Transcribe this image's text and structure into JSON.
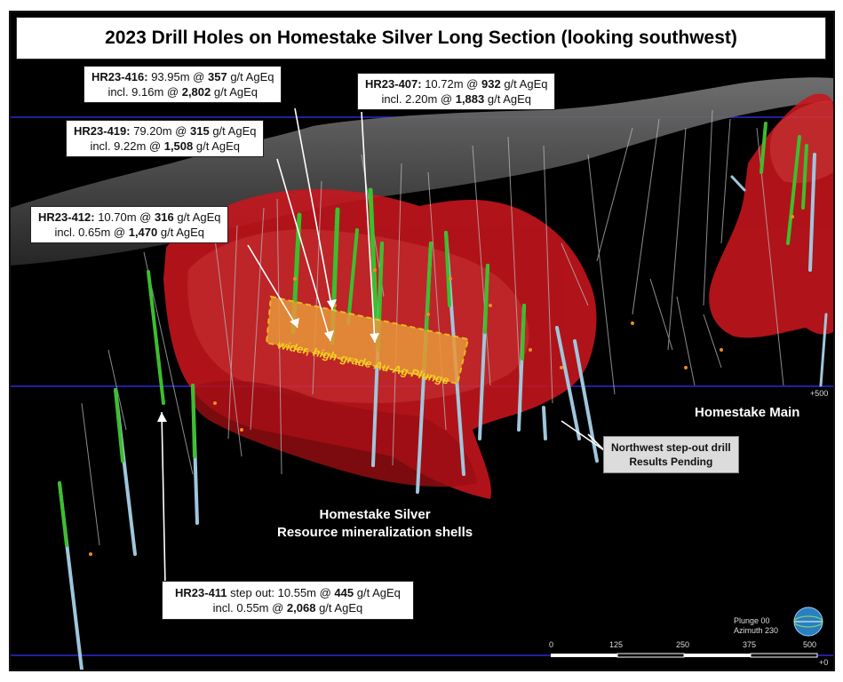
{
  "title": "2023 Drill Holes on Homestake Silver Long Section (looking southwest)",
  "callouts": [
    {
      "id": "hr23-416",
      "hole": "HR23-416:",
      "line1_pre": " 93.95m @ ",
      "line1_val": "357",
      "line1_post": " g/t AgEq",
      "line2_pre": "incl. 9.16m @ ",
      "line2_val": "2,802",
      "line2_post": " g/t AgEq"
    },
    {
      "id": "hr23-407",
      "hole": "HR23-407:",
      "line1_pre": " 10.72m @ ",
      "line1_val": "932",
      "line1_post": " g/t AgEq",
      "line2_pre": "incl. 2.20m @ ",
      "line2_val": "1,883",
      "line2_post": " g/t AgEq"
    },
    {
      "id": "hr23-419",
      "hole": "HR23-419:",
      "line1_pre": " 79.20m @ ",
      "line1_val": "315",
      "line1_post": " g/t AgEq",
      "line2_pre": "incl. 9.22m @ ",
      "line2_val": "1,508",
      "line2_post": " g/t AgEq"
    },
    {
      "id": "hr23-412",
      "hole": "HR23-412:",
      "line1_pre": " 10.70m @ ",
      "line1_val": "316",
      "line1_post": " g/t AgEq",
      "line2_pre": "incl. 0.65m @ ",
      "line2_val": "1,470",
      "line2_post": " g/t AgEq"
    },
    {
      "id": "hr23-411",
      "hole": "HR23-411",
      "line1_pre": "  step out: 10.55m @ ",
      "line1_val": "445",
      "line1_post": " g/t AgEq",
      "line2_pre": "incl. 0.55m @ ",
      "line2_val": "2,068",
      "line2_post": " g/t AgEq"
    }
  ],
  "plunge_label": "wider, high-grade Au-Ag Plunge",
  "pending": {
    "line1": "Northwest step-out drill",
    "line2": "Results Pending"
  },
  "homestake_main": "Homestake Main",
  "homestake_silver": {
    "line1": "Homestake Silver",
    "line2": "Resource mineralization shells"
  },
  "elevation_labels": {
    "mid": "+500",
    "bottom": "+0"
  },
  "view_info": {
    "plunge": "Plunge 00",
    "azimuth": "Azimuth 230"
  },
  "scale_ticks": [
    "0",
    "125",
    "250",
    "375",
    "500"
  ],
  "colors": {
    "shell": "#c8161d",
    "shell_light": "#e23a3a",
    "plunge_fill": "#e8963a",
    "plunge_border": "#f5d020",
    "hole_green": "#3cbf2e",
    "hole_blue": "#9fc6dc",
    "grid_blue": "#2a2ad6",
    "topo": "#5a5a5a"
  }
}
